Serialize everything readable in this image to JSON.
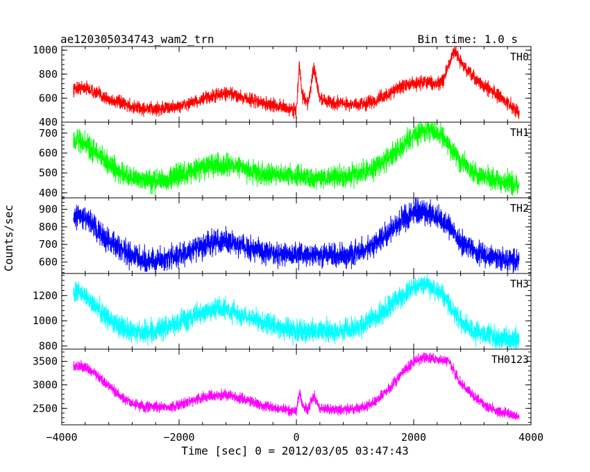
{
  "chart_data": {
    "type": "line",
    "title": "ae120305034743_wam2_trn",
    "subtitle": "Bin time: 1.0 s",
    "xlabel": "Time [sec] 0 = 2012/03/05 03:47:43",
    "ylabel": "Counts/sec",
    "xlim": [
      -4000,
      4000
    ],
    "x_ticks": [
      -4000,
      -2000,
      0,
      2000,
      4000
    ],
    "x_tick_labels": [
      "−4000",
      "−2000",
      "0",
      "2000",
      "4000"
    ],
    "grid": false,
    "x": [
      -3800,
      -3600,
      -3400,
      -3200,
      -3000,
      -2800,
      -2600,
      -2400,
      -2200,
      -2000,
      -1800,
      -1600,
      -1400,
      -1200,
      -1000,
      -800,
      -600,
      -400,
      -200,
      0,
      50,
      100,
      200,
      300,
      400,
      600,
      800,
      1000,
      1200,
      1400,
      1600,
      1800,
      2000,
      2200,
      2400,
      2500,
      2600,
      2700,
      2800,
      3000,
      3200,
      3400,
      3600,
      3800
    ],
    "panels": [
      {
        "name": "TH0",
        "color": "#ff0000",
        "ylim": [
          400,
          1030
        ],
        "y_ticks": [
          400,
          600,
          800,
          1000
        ],
        "y_tick_labels": [
          "400",
          "600",
          "800",
          "1000"
        ],
        "noise": 45,
        "values": [
          680,
          690,
          640,
          590,
          560,
          530,
          510,
          510,
          520,
          530,
          560,
          590,
          620,
          640,
          620,
          590,
          560,
          540,
          520,
          500,
          880,
          620,
          560,
          850,
          600,
          560,
          560,
          540,
          560,
          590,
          640,
          700,
          720,
          740,
          720,
          740,
          880,
          1000,
          900,
          780,
          700,
          640,
          560,
          480
        ]
      },
      {
        "name": "TH1",
        "color": "#00ff00",
        "ylim": [
          375,
          755
        ],
        "y_ticks": [
          400,
          500,
          600,
          700
        ],
        "y_tick_labels": [
          "400",
          "500",
          "600",
          "700"
        ],
        "noise": 45,
        "values": [
          670,
          650,
          600,
          540,
          500,
          470,
          460,
          460,
          470,
          490,
          510,
          530,
          540,
          540,
          530,
          510,
          500,
          490,
          490,
          480,
          480,
          480,
          480,
          480,
          480,
          480,
          480,
          490,
          510,
          540,
          580,
          640,
          690,
          720,
          700,
          680,
          640,
          600,
          560,
          510,
          480,
          460,
          450,
          440
        ]
      },
      {
        "name": "TH2",
        "color": "#0000ff",
        "ylim": [
          535,
          965
        ],
        "y_ticks": [
          600,
          700,
          800,
          900
        ],
        "y_tick_labels": [
          "600",
          "700",
          "800",
          "900"
        ],
        "noise": 55,
        "values": [
          860,
          850,
          790,
          720,
          670,
          630,
          610,
          610,
          620,
          640,
          660,
          690,
          710,
          720,
          700,
          680,
          660,
          650,
          640,
          640,
          640,
          640,
          640,
          640,
          640,
          640,
          640,
          650,
          680,
          720,
          780,
          840,
          880,
          880,
          850,
          830,
          800,
          760,
          720,
          670,
          640,
          620,
          610,
          600
        ]
      },
      {
        "name": "TH3",
        "color": "#00ffff",
        "ylim": [
          775,
          1375
        ],
        "y_ticks": [
          800,
          1000,
          1200
        ],
        "y_tick_labels": [
          "800",
          "1000",
          "1200"
        ],
        "noise": 70,
        "values": [
          1230,
          1200,
          1110,
          1010,
          950,
          920,
          910,
          920,
          950,
          990,
          1030,
          1070,
          1090,
          1090,
          1060,
          1020,
          990,
          960,
          940,
          920,
          920,
          920,
          920,
          920,
          920,
          920,
          920,
          940,
          980,
          1040,
          1120,
          1200,
          1270,
          1290,
          1240,
          1200,
          1140,
          1060,
          990,
          920,
          880,
          860,
          850,
          850
        ]
      },
      {
        "name": "TH0123",
        "color": "#ff00ff",
        "ylim": [
          2150,
          3760
        ],
        "y_ticks": [
          2500,
          3000,
          3500
        ],
        "y_tick_labels": [
          "2500",
          "3000",
          "3500"
        ],
        "noise": 90,
        "values": [
          3400,
          3380,
          3200,
          2980,
          2750,
          2600,
          2540,
          2520,
          2530,
          2570,
          2650,
          2730,
          2780,
          2790,
          2720,
          2650,
          2570,
          2510,
          2470,
          2430,
          2880,
          2550,
          2480,
          2780,
          2500,
          2480,
          2470,
          2480,
          2550,
          2700,
          2950,
          3250,
          3500,
          3600,
          3540,
          3520,
          3520,
          3250,
          3020,
          2780,
          2580,
          2460,
          2400,
          2320
        ]
      }
    ]
  }
}
